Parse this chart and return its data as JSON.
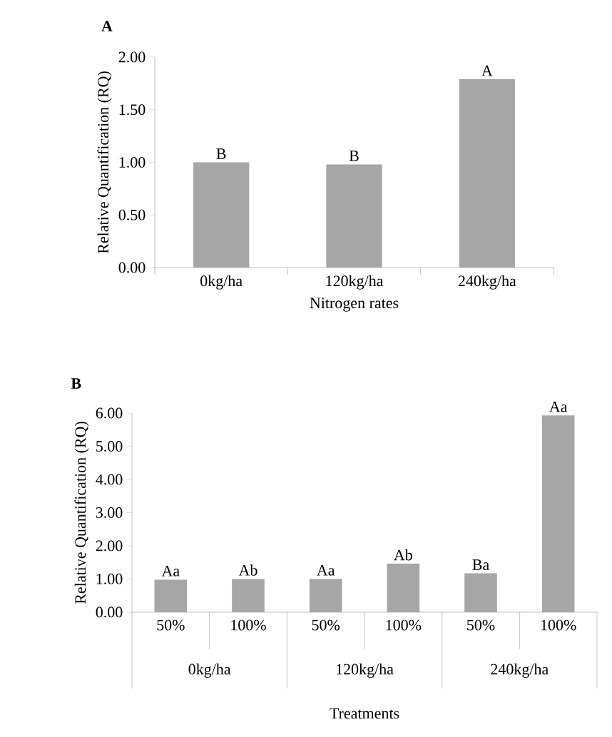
{
  "chart_data": [
    {
      "type": "bar",
      "title": "A",
      "xlabel": "Nitrogen rates",
      "ylabel": "Relative Quantification (RQ)",
      "categories": [
        "0kg/ha",
        "120kg/ha",
        "240kg/ha"
      ],
      "values": [
        1.0,
        0.98,
        1.79
      ],
      "color": "#a6a6a6",
      "value_labels": [
        "B",
        "B",
        "A"
      ],
      "ylim": [
        0,
        2
      ],
      "yticks": [
        {
          "value": 0,
          "label": "0.00"
        },
        {
          "value": 0.5,
          "label": "0.50"
        },
        {
          "value": 1,
          "label": "1.00"
        },
        {
          "value": 1.5,
          "label": "1.50"
        },
        {
          "value": 2,
          "label": "2.00"
        }
      ]
    },
    {
      "type": "bar",
      "title": "B",
      "xlabel": "Treatments",
      "ylabel": "Relative Quantification (RQ)",
      "categories": [
        "50%",
        "100%",
        "50%",
        "100%",
        "50%",
        "100%"
      ],
      "values": [
        0.98,
        1.0,
        1.0,
        1.46,
        1.17,
        5.93
      ],
      "color": "#a6a6a6",
      "value_labels": [
        "Aa",
        "Ab",
        "Aa",
        "Ab",
        "Ba",
        "Aa"
      ],
      "annotations": [
        "0kg/ha",
        "120kg/ha",
        "240kg/ha"
      ],
      "ylim": [
        0,
        6
      ],
      "yticks": [
        {
          "value": 0,
          "label": "0.00"
        },
        {
          "value": 1,
          "label": "1.00"
        },
        {
          "value": 2,
          "label": "2.00"
        },
        {
          "value": 3,
          "label": "3.00"
        },
        {
          "value": 4,
          "label": "4.00"
        },
        {
          "value": 5,
          "label": "5.00"
        },
        {
          "value": 6,
          "label": "6.00"
        }
      ]
    }
  ]
}
